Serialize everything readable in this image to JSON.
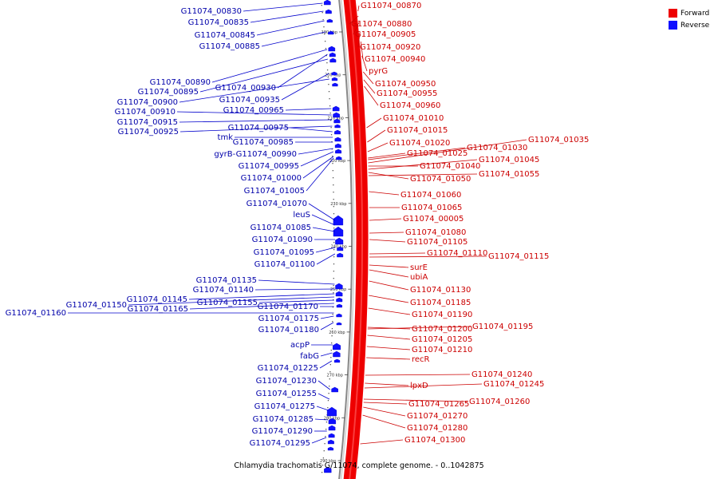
{
  "caption": "Chlamydia trachomatis G/11074, complete genome. - 0..1042875",
  "legend": [
    {
      "label": "Forward",
      "color": "#ee0000"
    },
    {
      "label": "Reverse",
      "color": "#1010ff"
    }
  ],
  "colors": {
    "forward": "#ee0000",
    "forward_dark": "#cc0000",
    "reverse": "#1010ff",
    "reverse_text": "#0000aa"
  },
  "tick_labels": [
    "190 kbp",
    "200 kbp",
    "210 kbp",
    "220 kbp",
    "230 kbp",
    "240 kbp",
    "250 kbp",
    "260 kbp",
    "270 kbp",
    "280 kbp",
    "290 kbp"
  ],
  "forward_genes": [
    "G11074_00870",
    "G11074_00880",
    "G11074_00905",
    "G11074_00920",
    "G11074_00940",
    "pyrG",
    "G11074_00950",
    "G11074_00955",
    "G11074_00960",
    "G11074_01010",
    "G11074_01015",
    "G11074_01020",
    "G11074_01025",
    "G11074_01030",
    "G11074_01035",
    "G11074_01040",
    "G11074_01045",
    "G11074_01050",
    "G11074_01055",
    "G11074_01060",
    "G11074_01065",
    "G11074_00005",
    "G11074_01080",
    "G11074_01105",
    "G11074_01110",
    "G11074_01115",
    "surE",
    "ubiA",
    "G11074_01130",
    "G11074_01185",
    "G11074_01190",
    "G11074_01200",
    "G11074_01195",
    "G11074_01205",
    "G11074_01210",
    "recR",
    "G11074_01240",
    "lpxD",
    "G11074_01245",
    "G11074_01260",
    "G11074_01265",
    "G11074_01270",
    "G11074_01280",
    "G11074_01300"
  ],
  "reverse_genes": [
    "G11074_00830",
    "G11074_00835",
    "G11074_00845",
    "G11074_00885",
    "G11074_00890",
    "G11074_00930",
    "G11074_00895",
    "G11074_00935",
    "G11074_00900",
    "G11074_00965",
    "G11074_00910",
    "G11074_00915",
    "G11074_00925",
    "G11074_00975",
    "tmk",
    "G11074_00985",
    "gyrB-G11074_00990",
    "G11074_00995",
    "G11074_01000",
    "G11074_01005",
    "G11074_01070",
    "leuS",
    "G11074_01085",
    "G11074_01090",
    "G11074_01095",
    "G11074_01100",
    "G11074_01135",
    "G11074_01140",
    "G11074_01145",
    "G11074_01150",
    "G11074_01155",
    "G11074_01165",
    "G11074_01170",
    "G11074_01160",
    "G11074_01175",
    "G11074_01180",
    "acpP",
    "fabG",
    "G11074_01225",
    "G11074_01230",
    "G11074_01255",
    "G11074_01275",
    "G11074_01285",
    "G11074_01290",
    "G11074_01295"
  ]
}
